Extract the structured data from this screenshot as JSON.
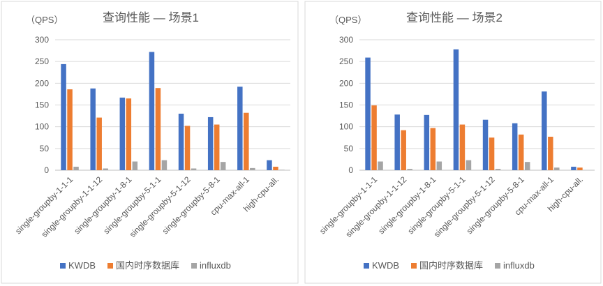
{
  "colors": {
    "kwdb": "#4472C4",
    "domestic": "#ED7D31",
    "influxdb": "#A5A5A5"
  },
  "chart_data": [
    {
      "type": "bar",
      "title": "查询性能 — 场景1",
      "ylabel": "（QPS）",
      "xlabel": "",
      "ylim": [
        0,
        300
      ],
      "yticks": [
        0,
        50,
        100,
        150,
        200,
        250,
        300
      ],
      "grid": true,
      "legend_position": "bottom-left",
      "categories": [
        "single-groupby-1-1-1",
        "single-groupby-1-1-12",
        "single-groupby-1-8-1",
        "single-groupby-5-1-1",
        "single-groupby-5-1-12",
        "single-groupby-5-8-1",
        "cpu-max-all-1",
        "high-cpu-all."
      ],
      "series": [
        {
          "name": "KWDB",
          "color_key": "kwdb",
          "values": [
            244,
            188,
            167,
            272,
            130,
            122,
            192,
            23
          ]
        },
        {
          "name": "国内时序数据库",
          "color_key": "domestic",
          "values": [
            186,
            121,
            165,
            189,
            102,
            105,
            132,
            8
          ]
        },
        {
          "name": "influxdb",
          "color_key": "influxdb",
          "values": [
            8,
            4,
            20,
            23,
            4,
            19,
            5,
            1
          ]
        }
      ]
    },
    {
      "type": "bar",
      "title": "查询性能 — 场景2",
      "ylabel": "（QPS）",
      "xlabel": "",
      "ylim": [
        0,
        300
      ],
      "yticks": [
        0,
        50,
        100,
        150,
        200,
        250,
        300
      ],
      "grid": true,
      "legend_position": "bottom-left",
      "categories": [
        "single-groupby-1-1-1",
        "single-groupby-1-1-12",
        "single-groupby-1-8-1",
        "single-groupby-5-1-1",
        "single-groupby-5-1-12",
        "single-groupby-5-8-1",
        "cpu-max-all-1",
        "high-cpu-all."
      ],
      "series": [
        {
          "name": "KWDB",
          "color_key": "kwdb",
          "values": [
            259,
            128,
            127,
            278,
            116,
            108,
            181,
            8
          ]
        },
        {
          "name": "国内时序数据库",
          "color_key": "domestic",
          "values": [
            149,
            92,
            97,
            105,
            75,
            82,
            77,
            6
          ]
        },
        {
          "name": "influxdb",
          "color_key": "influxdb",
          "values": [
            20,
            3,
            20,
            23,
            3,
            19,
            6,
            0
          ]
        }
      ]
    }
  ]
}
